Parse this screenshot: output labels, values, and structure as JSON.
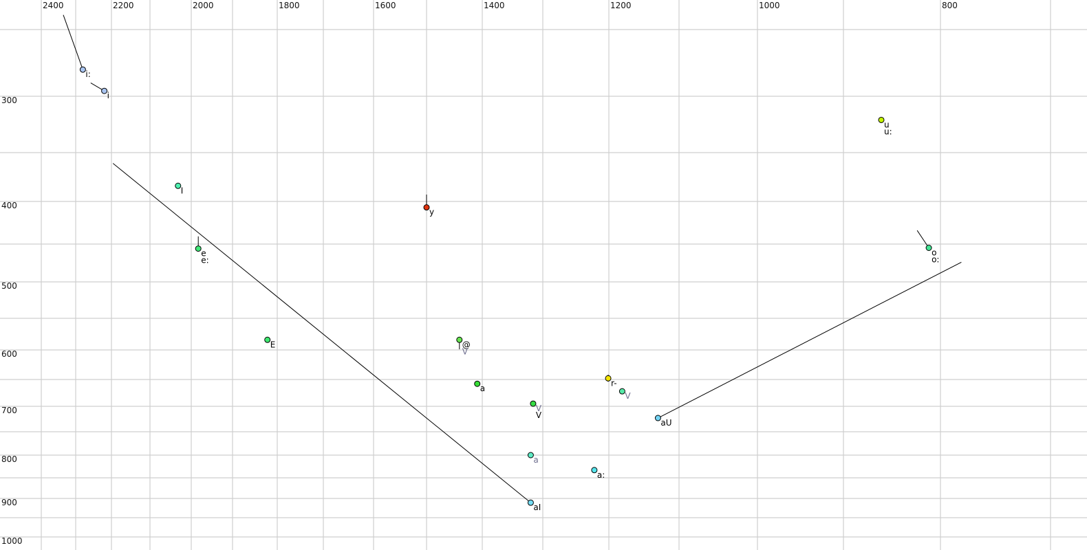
{
  "chart_data": {
    "type": "scatter",
    "title": "",
    "xlabel": "",
    "ylabel": "",
    "x_axis": {
      "position": "top",
      "reversed": true,
      "scale": "nonlinear (auditory)",
      "range": [
        2440,
        680
      ],
      "tick_labels": [
        2400,
        2200,
        2000,
        1800,
        1600,
        1400,
        1200,
        1000,
        800
      ],
      "gridlines": [
        2400,
        2300,
        2200,
        2100,
        2000,
        1900,
        1800,
        1700,
        1600,
        1500,
        1400,
        1300,
        1200,
        1100,
        1000,
        900,
        800,
        700
      ]
    },
    "y_axis": {
      "position": "left",
      "reversed": true,
      "scale": "nonlinear (auditory)",
      "range": [
        230,
        1010
      ],
      "tick_labels": [
        300,
        400,
        500,
        600,
        700,
        800,
        900,
        1000
      ],
      "gridlines": [
        250,
        300,
        350,
        400,
        450,
        500,
        550,
        600,
        650,
        700,
        750,
        800,
        850,
        900,
        950,
        1000
      ]
    },
    "grid": true,
    "points": [
      {
        "labels": [
          "i:"
        ],
        "x": 2280,
        "y": 280,
        "color": "#a8c4f0",
        "label_colors": [
          "#000"
        ]
      },
      {
        "labels": [
          "i"
        ],
        "x": 2220,
        "y": 296,
        "color": "#a8c4f0",
        "label_colors": [
          "#000"
        ]
      },
      {
        "labels": [
          "I"
        ],
        "x": 2032,
        "y": 384,
        "color": "#4ef0b0",
        "label_colors": [
          "#000"
        ]
      },
      {
        "labels": [
          "e",
          "e:"
        ],
        "x": 1983,
        "y": 456,
        "color": "#40e878",
        "label_colors": [
          "#000",
          "#000"
        ]
      },
      {
        "labels": [
          "E"
        ],
        "x": 1822,
        "y": 584,
        "color": "#3ee870",
        "label_colors": [
          "#000"
        ]
      },
      {
        "labels": [
          "y"
        ],
        "x": 1500,
        "y": 407,
        "color": "#e03410",
        "label_colors": [
          "#000"
        ]
      },
      {
        "labels": [
          "@",
          "V"
        ],
        "x": 1441,
        "y": 584,
        "color": "#66e450",
        "label_colors": [
          "#000",
          "#707090"
        ]
      },
      {
        "labels": [
          "a"
        ],
        "x": 1409,
        "y": 658,
        "color": "#36dc36",
        "label_colors": [
          "#000"
        ]
      },
      {
        "labels": [
          "V",
          "V"
        ],
        "x": 1316,
        "y": 695,
        "color": "#36dc44",
        "label_colors": [
          "#707090",
          "#000"
        ]
      },
      {
        "labels": [
          "a"
        ],
        "x": 1320,
        "y": 800,
        "color": "#5eeac4",
        "label_colors": [
          "#707090"
        ]
      },
      {
        "labels": [
          "aI"
        ],
        "x": 1320,
        "y": 911,
        "color": "#74dcf4",
        "label_colors": [
          "#000"
        ]
      },
      {
        "labels": [
          "r-"
        ],
        "x": 1201,
        "y": 648,
        "color": "#f4e400",
        "label_colors": [
          "#000"
        ]
      },
      {
        "labels": [
          "V"
        ],
        "x": 1181,
        "y": 672,
        "color": "#56eaa8",
        "label_colors": [
          "#707090"
        ]
      },
      {
        "labels": [
          "a:"
        ],
        "x": 1222,
        "y": 833,
        "color": "#56e4ec",
        "label_colors": [
          "#000"
        ]
      },
      {
        "labels": [
          "aU"
        ],
        "x": 1130,
        "y": 723,
        "color": "#74d4f4",
        "label_colors": [
          "#000"
        ]
      },
      {
        "labels": [
          "u",
          "u:"
        ],
        "x": 861,
        "y": 321,
        "color": "#c4f400",
        "label_colors": [
          "#000",
          "#000"
        ]
      },
      {
        "labels": [
          "o",
          "o:"
        ],
        "x": 812,
        "y": 455,
        "color": "#44e494",
        "label_colors": [
          "#000",
          "#000"
        ]
      }
    ],
    "trajectories": [
      {
        "from": [
          2336,
          239
        ],
        "to": [
          2280,
          280
        ]
      },
      {
        "from": [
          2258,
          290
        ],
        "to": [
          2220,
          296
        ]
      },
      {
        "from": [
          2196,
          361
        ],
        "to": [
          1320,
          911
        ]
      },
      {
        "from": [
          1983,
          441
        ],
        "to": [
          1983,
          456
        ]
      },
      {
        "from": [
          1500,
          393
        ],
        "to": [
          1500,
          407
        ]
      },
      {
        "from": [
          1441,
          599
        ],
        "to": [
          1441,
          584
        ]
      },
      {
        "from": [
          1201,
          642
        ],
        "to": [
          1201,
          654
        ]
      },
      {
        "from": [
          824,
          434
        ],
        "to": [
          812,
          455
        ]
      },
      {
        "from": [
          1130,
          723
        ],
        "to": [
          781,
          474
        ]
      }
    ]
  }
}
